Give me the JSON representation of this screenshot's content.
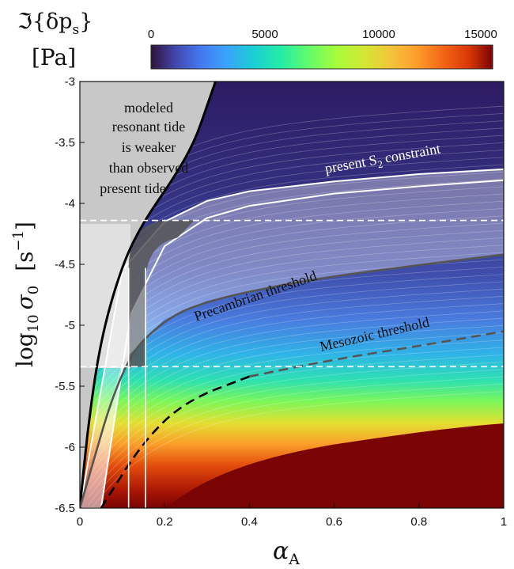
{
  "chart_data": {
    "type": "heatmap",
    "colorbar": {
      "title_line1": "ℑ{δp",
      "title_sub": "s",
      "title_close": "}",
      "title_line2": "[Pa]",
      "ticks": [
        "0",
        "5000",
        "10000",
        "15000"
      ],
      "range": [
        0,
        15000
      ]
    },
    "xlabel": "α",
    "xlabel_sub": "A",
    "ylabel_main": "log",
    "ylabel_sub": "10",
    "ylabel_sym": "σ",
    "ylabel_sym_sub": "0",
    "ylabel_unit": "[s",
    "ylabel_unit_sup": "−1",
    "ylabel_unit_close": "]",
    "xlim": [
      0,
      1
    ],
    "ylim": [
      -6.5,
      -3
    ],
    "xticks": [
      "0",
      "0.2",
      "0.4",
      "0.6",
      "0.8",
      "1"
    ],
    "yticks": [
      "-3",
      "-3.5",
      "-4",
      "-4.5",
      "-5",
      "-5.5",
      "-6",
      "-6.5"
    ],
    "bands": {
      "present_S2_upper": [
        [
          0.0,
          -6.5
        ],
        [
          0.1,
          -4.55
        ],
        [
          0.2,
          -4.15
        ],
        [
          0.3,
          -3.98
        ],
        [
          0.4,
          -3.9
        ],
        [
          0.6,
          -3.82
        ],
        [
          0.8,
          -3.76
        ],
        [
          1.0,
          -3.72
        ]
      ],
      "present_S2_lower": [
        [
          0.05,
          -6.5
        ],
        [
          0.12,
          -4.9
        ],
        [
          0.2,
          -4.35
        ],
        [
          0.3,
          -4.12
        ],
        [
          0.4,
          -4.02
        ],
        [
          0.6,
          -3.92
        ],
        [
          0.8,
          -3.86
        ],
        [
          1.0,
          -3.81
        ]
      ],
      "precambrian_threshold": [
        [
          0.0,
          -6.5
        ],
        [
          0.1,
          -5.3
        ],
        [
          0.2,
          -4.95
        ],
        [
          0.3,
          -4.8
        ],
        [
          0.5,
          -4.65
        ],
        [
          0.7,
          -4.55
        ],
        [
          1.0,
          -4.42
        ]
      ],
      "mesozoic_threshold": [
        [
          0.05,
          -6.5
        ],
        [
          0.15,
          -5.95
        ],
        [
          0.25,
          -5.62
        ],
        [
          0.4,
          -5.42
        ],
        [
          0.6,
          -5.28
        ],
        [
          0.8,
          -5.17
        ],
        [
          1.0,
          -5.05
        ]
      ],
      "weak_tide_boundary": [
        [
          0.0,
          -6.5
        ],
        [
          0.02,
          -5.8
        ],
        [
          0.05,
          -5.1
        ],
        [
          0.1,
          -4.5
        ],
        [
          0.15,
          -4.15
        ],
        [
          0.22,
          -3.8
        ],
        [
          0.27,
          -3.5
        ],
        [
          0.3,
          -3.2
        ],
        [
          0.32,
          -3.0
        ]
      ]
    },
    "horizontal_dashed": [
      -4.14,
      -5.34
    ],
    "vertical_lines": [
      0.115,
      0.155
    ],
    "annotations": {
      "weak_region_lines": [
        "modeled",
        "resonant tide",
        "is weaker",
        "than observed",
        "present tide"
      ],
      "present_s2": "present S",
      "present_s2_sub": "2",
      "present_s2_tail": "constraint",
      "precambrian": "Precambrian threshold",
      "mesozoic": "Mesozoic threshold"
    }
  }
}
